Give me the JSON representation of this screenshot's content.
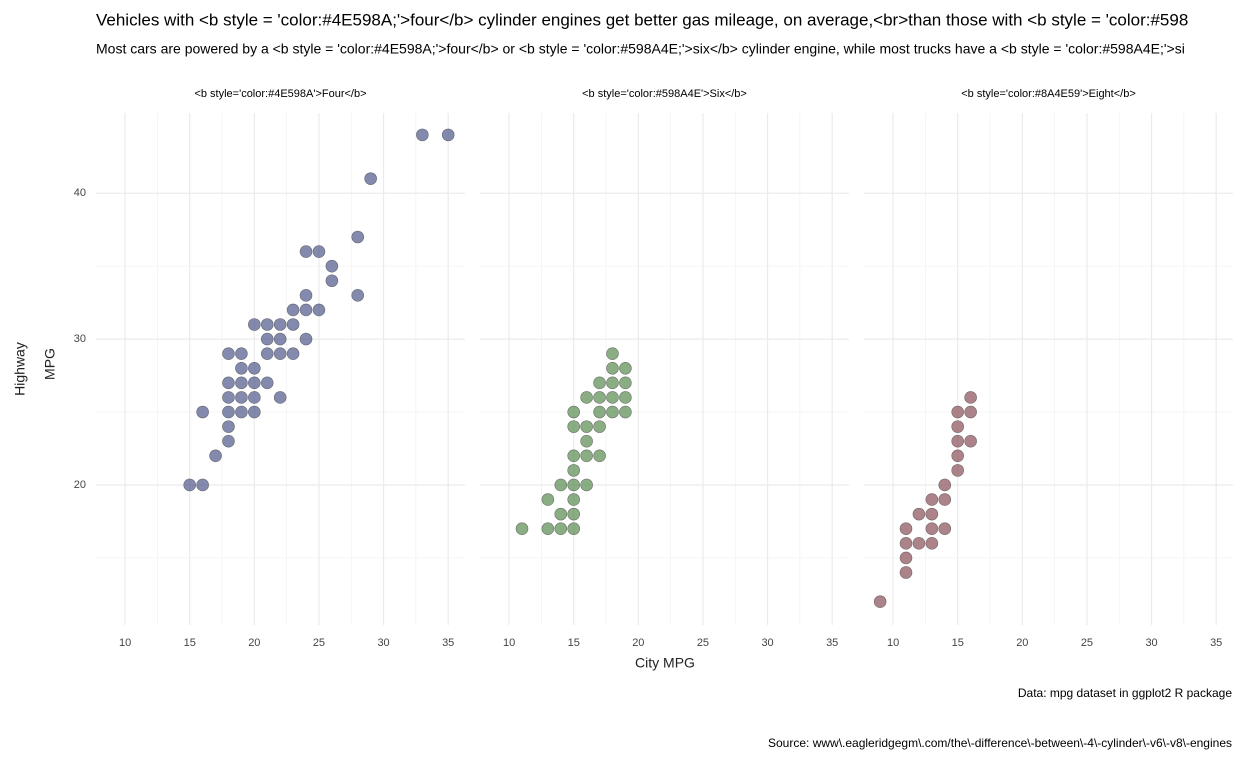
{
  "chart_data": {
    "type": "scatter",
    "title": "Vehicles with <b style = 'color:#4E598A;'>four</b> cylinder engines get better gas mileage, on average,<br>than those with <b style = 'color:#598",
    "subtitle": "Most cars are powered by a <b style = 'color:#4E598A;'>four</b> or <b style = 'color:#598A4E;'>six</b> cylinder engine, while most trucks have a <b style = 'color:#598A4E;'>si",
    "xlabel": "City MPG",
    "ylabel": [
      "Highway",
      "MPG"
    ],
    "caption": "Data: mpg dataset in ggplot2 R package",
    "source": "Source: www\\.eagleridgegm\\.com/the\\-difference\\-between\\-4\\-cylinder\\-v6\\-v8\\-engines",
    "xlim": [
      7.75,
      36.3
    ],
    "ylim": [
      10.4,
      45.5
    ],
    "xticks": [
      10,
      15,
      20,
      25,
      30,
      35
    ],
    "yticks": [
      20,
      30,
      40
    ],
    "xminor": [
      12.5,
      17.5,
      22.5,
      27.5,
      32.5
    ],
    "yminor": [
      15,
      25,
      35
    ],
    "grid": true,
    "panels": [
      {
        "title": "<b style='color:#4E598A'>Four</b>",
        "color": "#4E598A",
        "x": [
          33,
          35,
          29,
          28,
          24,
          25,
          26,
          26,
          24,
          28,
          23,
          24,
          25,
          20,
          21,
          22,
          23,
          21,
          22,
          24,
          18,
          19,
          21,
          22,
          23,
          19,
          20,
          18,
          19,
          20,
          21,
          18,
          19,
          20,
          22,
          16,
          18,
          19,
          20,
          18,
          18,
          17,
          15,
          16
        ],
        "y": [
          44,
          44,
          41,
          37,
          36,
          36,
          35,
          34,
          33,
          33,
          32,
          32,
          32,
          31,
          31,
          31,
          31,
          30,
          30,
          30,
          29,
          29,
          29,
          29,
          29,
          28,
          28,
          27,
          27,
          27,
          27,
          26,
          26,
          26,
          26,
          25,
          25,
          25,
          25,
          24,
          23,
          22,
          20,
          20
        ]
      },
      {
        "title": "<b style='color:#598A4E'>Six</b>",
        "color": "#598A4E",
        "x": [
          11,
          13,
          14,
          15,
          13,
          15,
          14,
          15,
          14,
          15,
          16,
          15,
          15,
          16,
          17,
          16,
          15,
          16,
          17,
          15,
          17,
          18,
          19,
          16,
          17,
          18,
          19,
          17,
          18,
          19,
          18,
          19,
          18
        ],
        "y": [
          17,
          17,
          17,
          17,
          19,
          19,
          18,
          18,
          20,
          20,
          20,
          21,
          22,
          22,
          22,
          23,
          24,
          24,
          24,
          25,
          25,
          25,
          25,
          26,
          26,
          26,
          26,
          27,
          27,
          27,
          28,
          28,
          29
        ]
      },
      {
        "title": "<b style='color:#8A4E59'>Eight</b>",
        "color": "#8A4E59",
        "x": [
          9,
          11,
          11,
          11,
          12,
          13,
          11,
          13,
          14,
          12,
          13,
          13,
          14,
          14,
          15,
          15,
          15,
          16,
          15,
          15,
          16,
          16
        ],
        "y": [
          12,
          14,
          15,
          16,
          16,
          16,
          17,
          17,
          17,
          18,
          18,
          19,
          19,
          20,
          21,
          22,
          23,
          23,
          24,
          25,
          25,
          26
        ]
      }
    ]
  }
}
